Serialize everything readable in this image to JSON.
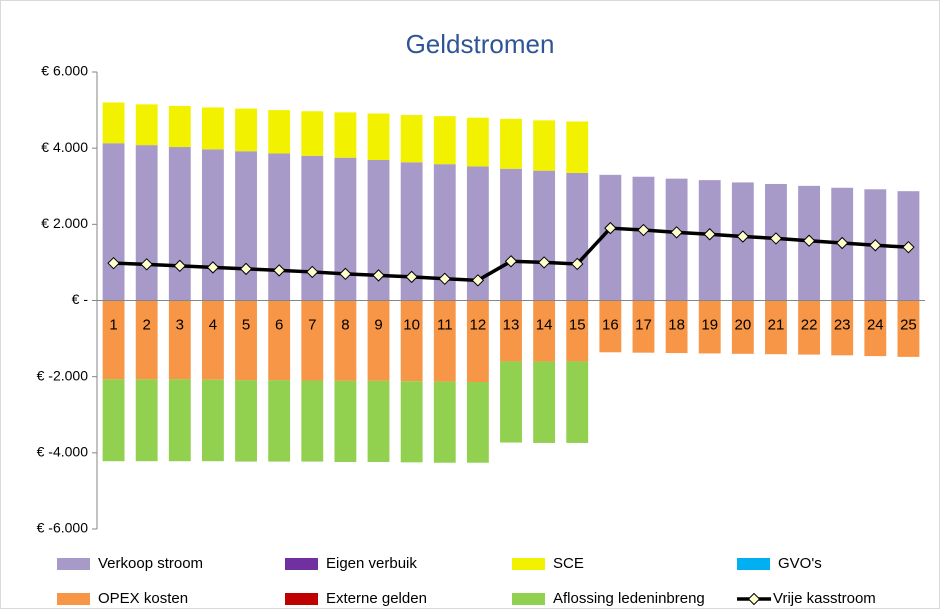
{
  "chart_data": {
    "type": "bar",
    "title": "Geldstromen",
    "stacked": true,
    "categories": [
      "1",
      "2",
      "3",
      "4",
      "5",
      "6",
      "7",
      "8",
      "9",
      "10",
      "11",
      "12",
      "13",
      "14",
      "15",
      "16",
      "17",
      "18",
      "19",
      "20",
      "21",
      "22",
      "23",
      "24",
      "25"
    ],
    "ylim": [
      -6000,
      6000
    ],
    "yticks": [
      {
        "value": -6000,
        "label": "€ -6.000"
      },
      {
        "value": -4000,
        "label": "€ -4.000"
      },
      {
        "value": -2000,
        "label": "€ -2.000"
      },
      {
        "value": 0,
        "label": "€ -"
      },
      {
        "value": 2000,
        "label": "€ 2.000"
      },
      {
        "value": 4000,
        "label": "€ 4.000"
      },
      {
        "value": 6000,
        "label": "€ 6.000"
      }
    ],
    "grid": false,
    "legend": "bottom",
    "series": [
      {
        "name": "Verkoop stroom",
        "color": "#a79ac9",
        "values": [
          4130,
          4080,
          4030,
          3970,
          3920,
          3860,
          3800,
          3750,
          3690,
          3630,
          3580,
          3520,
          3460,
          3410,
          3350,
          3300,
          3250,
          3200,
          3160,
          3100,
          3060,
          3010,
          2960,
          2920,
          2870
        ]
      },
      {
        "name": "Eigen verbuik",
        "color": "#7030a0",
        "values": [
          0,
          0,
          0,
          0,
          0,
          0,
          0,
          0,
          0,
          0,
          0,
          0,
          0,
          0,
          0,
          0,
          0,
          0,
          0,
          0,
          0,
          0,
          0,
          0,
          0
        ]
      },
      {
        "name": "SCE",
        "color": "#f2f200",
        "values": [
          1070,
          1070,
          1080,
          1100,
          1120,
          1140,
          1170,
          1190,
          1220,
          1240,
          1260,
          1280,
          1310,
          1320,
          1350,
          0,
          0,
          0,
          0,
          0,
          0,
          0,
          0,
          0,
          0
        ]
      },
      {
        "name": "GVO's",
        "color": "#00b0f0",
        "values": [
          0,
          0,
          0,
          0,
          0,
          0,
          0,
          0,
          0,
          0,
          0,
          0,
          0,
          0,
          0,
          0,
          0,
          0,
          0,
          0,
          0,
          0,
          0,
          0,
          0
        ]
      },
      {
        "name": "OPEX kosten",
        "color": "#f79646",
        "values": [
          -2070,
          -2070,
          -2070,
          -2080,
          -2090,
          -2090,
          -2100,
          -2110,
          -2110,
          -2120,
          -2130,
          -2140,
          -1600,
          -1600,
          -1600,
          -1360,
          -1370,
          -1380,
          -1390,
          -1400,
          -1410,
          -1420,
          -1440,
          -1460,
          -1480
        ]
      },
      {
        "name": "Externe gelden",
        "color": "#c00000",
        "values": [
          0,
          0,
          0,
          0,
          0,
          0,
          0,
          0,
          0,
          0,
          0,
          0,
          0,
          0,
          0,
          0,
          0,
          0,
          0,
          0,
          0,
          0,
          0,
          0,
          0
        ]
      },
      {
        "name": "Aflossing ledeninbreng",
        "color": "#92d050",
        "values": [
          -2150,
          -2150,
          -2150,
          -2140,
          -2140,
          -2140,
          -2130,
          -2130,
          -2130,
          -2130,
          -2130,
          -2120,
          -2130,
          -2140,
          -2140,
          0,
          0,
          0,
          0,
          0,
          0,
          0,
          0,
          0,
          0
        ]
      },
      {
        "name": "Vrije kasstroom",
        "type": "line",
        "color": "#000000",
        "values": [
          980,
          950,
          910,
          870,
          830,
          790,
          750,
          700,
          660,
          620,
          570,
          530,
          1030,
          1000,
          960,
          1900,
          1850,
          1790,
          1740,
          1680,
          1630,
          1570,
          1510,
          1450,
          1400
        ]
      }
    ]
  }
}
